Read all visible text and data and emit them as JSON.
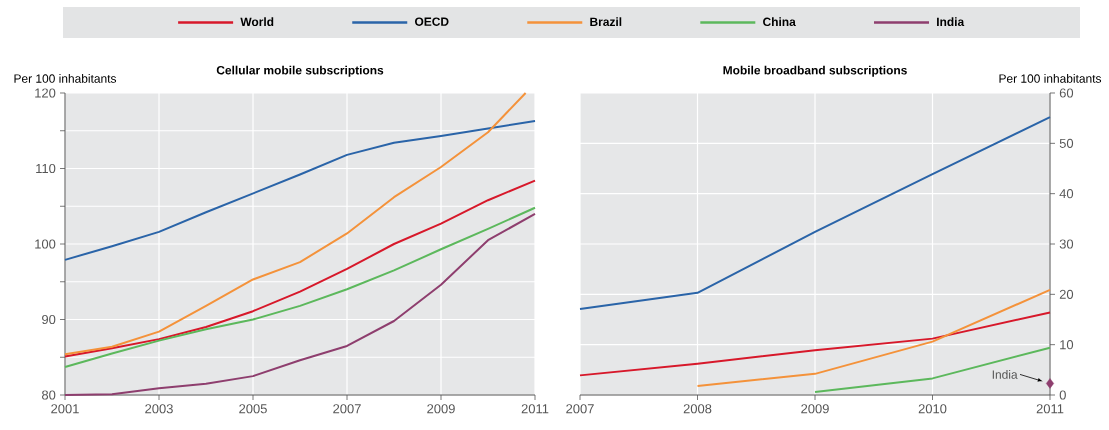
{
  "chart_data": [
    {
      "type": "line",
      "title": "Cellular mobile subscriptions",
      "ylabel": "Per 100 inhabitants",
      "legend": "top",
      "grid": true,
      "x": [
        2001,
        2002,
        2003,
        2004,
        2005,
        2006,
        2007,
        2008,
        2009,
        2010,
        2011
      ],
      "xlim": [
        2001,
        2011
      ],
      "xticks": [
        2001,
        2003,
        2005,
        2007,
        2009,
        2011
      ],
      "ylim": [
        80,
        120
      ],
      "yticks": [
        80,
        {
          "value": 85,
          "label": null
        },
        90,
        {
          "value": 95,
          "label": null
        },
        100,
        {
          "value": 105,
          "label": null
        },
        110,
        {
          "value": 115,
          "label": null
        },
        120
      ],
      "series": [
        {
          "name": "World",
          "color": "#d7182a",
          "values": [
            85.1,
            86.2,
            87.4,
            89.0,
            91.1,
            93.7,
            96.7,
            100.0,
            102.7,
            105.8,
            108.4
          ]
        },
        {
          "name": "OECD",
          "color": "#2a64a8",
          "values": [
            97.9,
            99.7,
            101.6,
            104.2,
            106.7,
            109.2,
            111.8,
            113.4,
            114.3,
            115.3,
            116.3
          ]
        },
        {
          "name": "Brazil",
          "color": "#f4923a",
          "x": [
            2001,
            2002,
            2003,
            2004,
            2005,
            2006,
            2007,
            2008,
            2009,
            2010,
            2010.8
          ],
          "values": [
            85.4,
            86.4,
            88.4,
            91.8,
            95.3,
            97.6,
            101.4,
            106.2,
            110.2,
            114.8,
            120
          ]
        },
        {
          "name": "China",
          "color": "#5cb85c",
          "values": [
            83.7,
            85.5,
            87.2,
            88.7,
            90.0,
            91.8,
            94.0,
            96.5,
            99.3,
            102.0,
            104.8
          ]
        },
        {
          "name": "India",
          "color": "#8e3e6e",
          "values": [
            80.0,
            80.1,
            80.9,
            81.5,
            82.5,
            84.6,
            86.5,
            89.8,
            94.6,
            100.5,
            104.0
          ]
        }
      ]
    },
    {
      "type": "line",
      "title": "Mobile broadband subscriptions",
      "ylabel": "Per 100 inhabitants",
      "grid": true,
      "x": [
        2007,
        2008,
        2009,
        2010,
        2011
      ],
      "xlim": [
        2007,
        2011
      ],
      "xticks": [
        2007,
        2008,
        2009,
        2010,
        2011
      ],
      "ylim": [
        0,
        60
      ],
      "yticks": [
        0,
        10,
        20,
        30,
        40,
        50,
        60
      ],
      "annotations": [
        {
          "text": "India",
          "x": 2011,
          "y": 2.3
        }
      ],
      "series": [
        {
          "color": "#d7182a",
          "values": [
            3.9,
            6.2,
            8.9,
            11.2,
            16.4
          ]
        },
        {
          "color": "#2a64a8",
          "values": [
            17.1,
            20.3,
            32.4,
            43.9,
            55.2
          ]
        },
        {
          "color": "#f4923a",
          "x": [
            2008,
            2009,
            2010,
            2011
          ],
          "values": [
            1.8,
            4.2,
            10.6,
            20.9
          ]
        },
        {
          "color": "#5cb85c",
          "x": [
            2009,
            2010,
            2011
          ],
          "values": [
            0.6,
            3.3,
            9.4
          ]
        },
        {
          "type": "scatter",
          "marker": "diamond",
          "color": "#8e3e6e",
          "x": [
            2011
          ],
          "values": [
            2.3
          ]
        }
      ]
    }
  ]
}
